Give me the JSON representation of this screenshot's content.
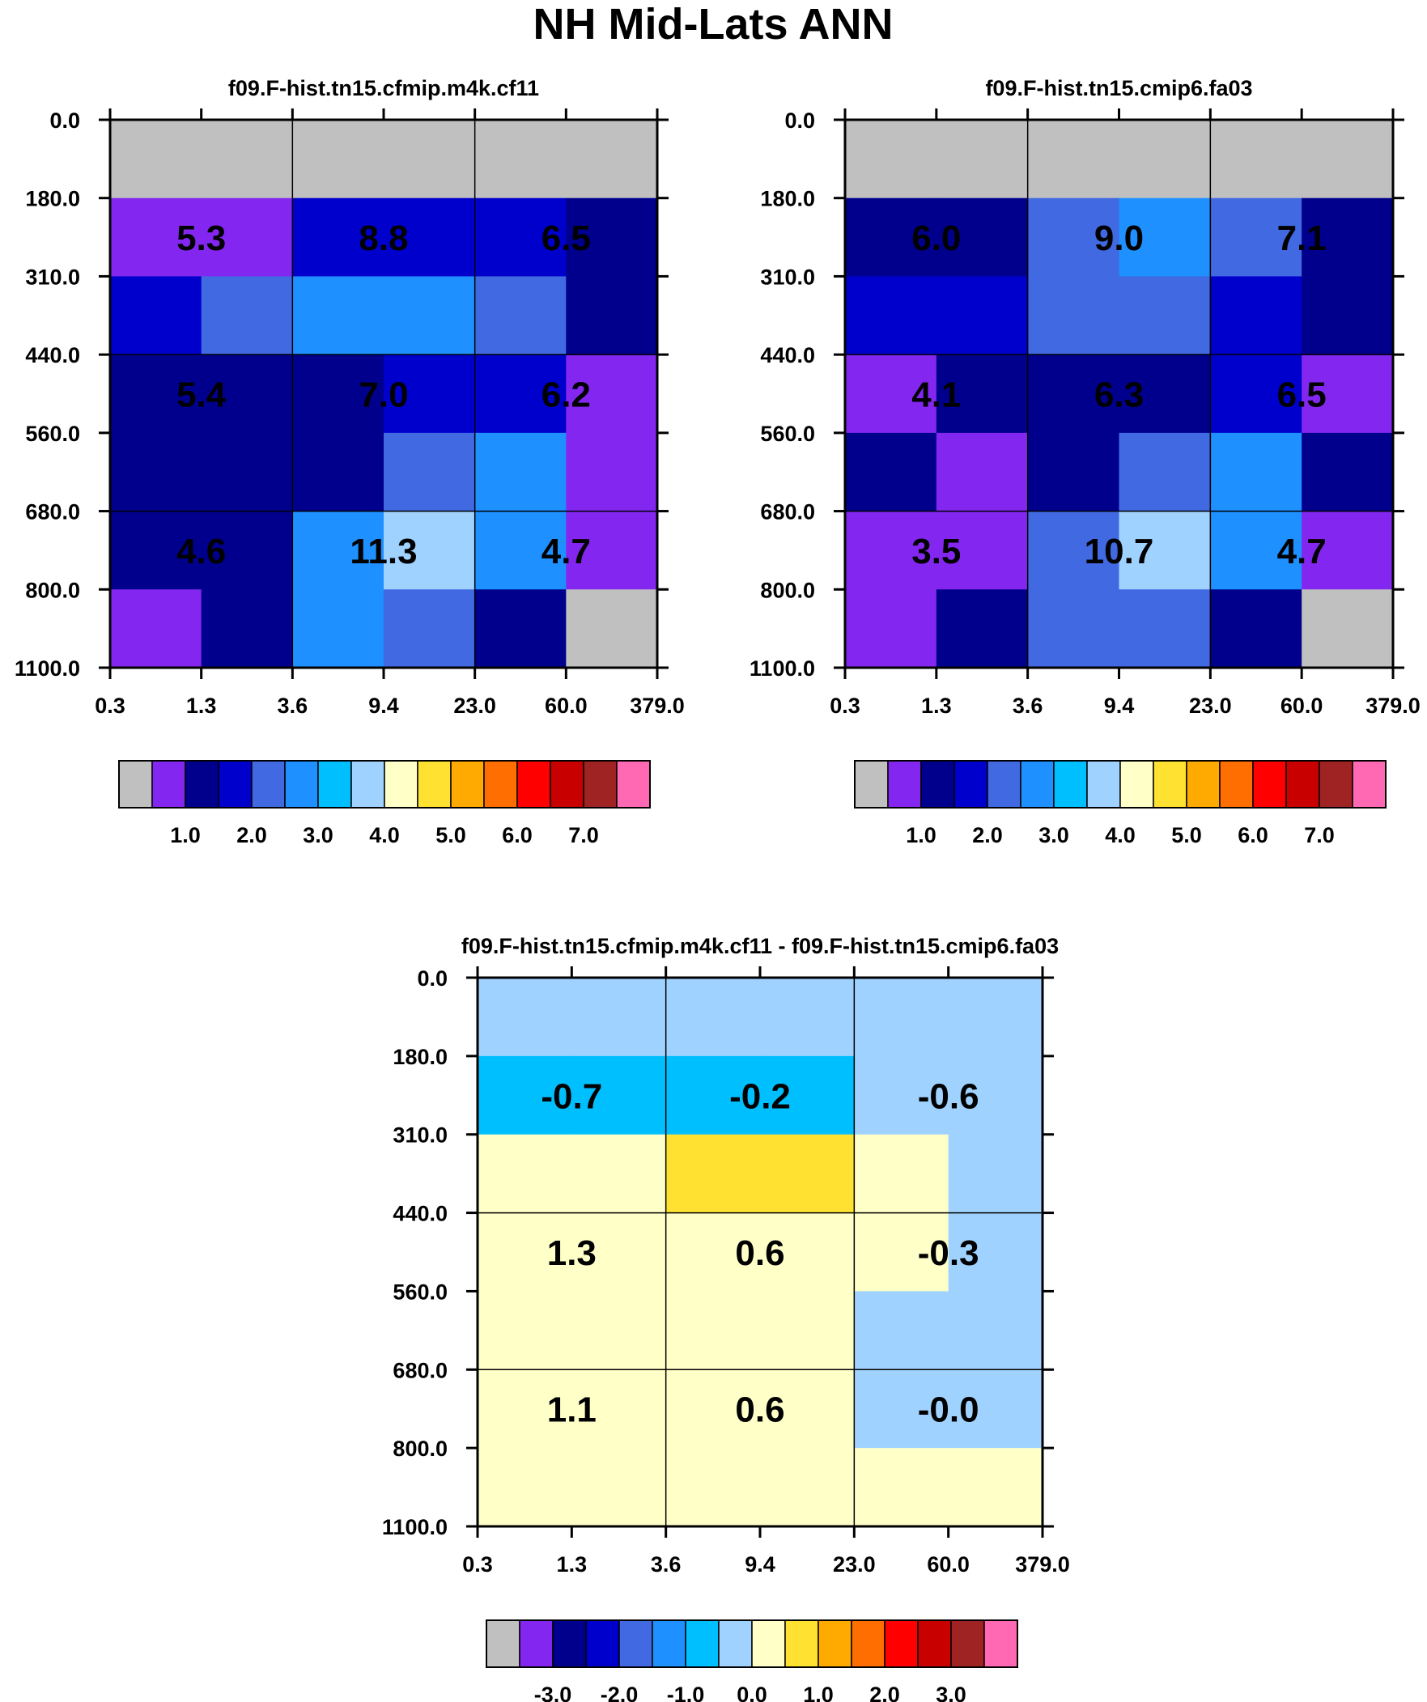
{
  "title": "NH Mid-Lats ANN",
  "x_ticks": [
    "0.3",
    "1.3",
    "3.6",
    "9.4",
    "23.0",
    "60.0",
    "379.0"
  ],
  "y_ticks": [
    "0.0",
    "180.0",
    "310.0",
    "440.0",
    "560.0",
    "680.0",
    "800.0",
    "1100.0"
  ],
  "palette": [
    "#c0c0c0",
    "#8327f0",
    "#00008c",
    "#0000cd",
    "#4169e1",
    "#1e90ff",
    "#00bfff",
    "#a0d2ff",
    "#ffffc8",
    "#ffe132",
    "#ffaa00",
    "#ff6e00",
    "#ff0000",
    "#c80000",
    "#a02323",
    "#ff69b4"
  ],
  "chart_data": [
    {
      "type": "heatmap",
      "title": "f09.F-hist.tn15.cfmip.m4k.cf11",
      "xlabel": "",
      "ylabel": "",
      "x_ticks": [
        "0.3",
        "1.3",
        "3.6",
        "9.4",
        "23.0",
        "60.0",
        "379.0"
      ],
      "y_ticks": [
        "0.0",
        "180.0",
        "310.0",
        "440.0",
        "560.0",
        "680.0",
        "800.0",
        "1100.0"
      ],
      "colorbar_labels": [
        "1.0",
        "2.0",
        "3.0",
        "4.0",
        "5.0",
        "6.0",
        "7.0"
      ],
      "cell_color_index": [
        [
          0,
          0,
          0,
          0,
          0,
          0
        ],
        [
          1,
          1,
          3,
          3,
          3,
          2
        ],
        [
          3,
          4,
          5,
          5,
          4,
          2
        ],
        [
          2,
          2,
          2,
          3,
          3,
          1
        ],
        [
          2,
          2,
          2,
          4,
          5,
          1
        ],
        [
          2,
          2,
          5,
          7,
          5,
          1
        ],
        [
          1,
          2,
          5,
          4,
          2,
          0
        ]
      ],
      "annotations": [
        {
          "x_bin": 0,
          "y_bin": 0,
          "label": "5.3"
        },
        {
          "x_bin": 1,
          "y_bin": 0,
          "label": "8.8"
        },
        {
          "x_bin": 2,
          "y_bin": 0,
          "label": "6.5"
        },
        {
          "x_bin": 0,
          "y_bin": 1,
          "label": "5.4"
        },
        {
          "x_bin": 1,
          "y_bin": 1,
          "label": "7.0"
        },
        {
          "x_bin": 2,
          "y_bin": 1,
          "label": "6.2"
        },
        {
          "x_bin": 0,
          "y_bin": 2,
          "label": "4.6"
        },
        {
          "x_bin": 1,
          "y_bin": 2,
          "label": "11.3"
        },
        {
          "x_bin": 2,
          "y_bin": 2,
          "label": "4.7"
        }
      ]
    },
    {
      "type": "heatmap",
      "title": "f09.F-hist.tn15.cmip6.fa03",
      "xlabel": "",
      "ylabel": "",
      "x_ticks": [
        "0.3",
        "1.3",
        "3.6",
        "9.4",
        "23.0",
        "60.0",
        "379.0"
      ],
      "y_ticks": [
        "0.0",
        "180.0",
        "310.0",
        "440.0",
        "560.0",
        "680.0",
        "800.0",
        "1100.0"
      ],
      "colorbar_labels": [
        "1.0",
        "2.0",
        "3.0",
        "4.0",
        "5.0",
        "6.0",
        "7.0"
      ],
      "cell_color_index": [
        [
          0,
          0,
          0,
          0,
          0,
          0
        ],
        [
          2,
          2,
          4,
          5,
          4,
          2
        ],
        [
          3,
          3,
          4,
          4,
          3,
          2
        ],
        [
          1,
          2,
          2,
          2,
          3,
          1
        ],
        [
          2,
          1,
          2,
          4,
          5,
          2
        ],
        [
          1,
          1,
          4,
          7,
          5,
          1
        ],
        [
          1,
          2,
          4,
          4,
          2,
          0
        ]
      ],
      "annotations": [
        {
          "x_bin": 0,
          "y_bin": 0,
          "label": "6.0"
        },
        {
          "x_bin": 1,
          "y_bin": 0,
          "label": "9.0"
        },
        {
          "x_bin": 2,
          "y_bin": 0,
          "label": "7.1"
        },
        {
          "x_bin": 0,
          "y_bin": 1,
          "label": "4.1"
        },
        {
          "x_bin": 1,
          "y_bin": 1,
          "label": "6.3"
        },
        {
          "x_bin": 2,
          "y_bin": 1,
          "label": "6.5"
        },
        {
          "x_bin": 0,
          "y_bin": 2,
          "label": "3.5"
        },
        {
          "x_bin": 1,
          "y_bin": 2,
          "label": "10.7"
        },
        {
          "x_bin": 2,
          "y_bin": 2,
          "label": "4.7"
        }
      ]
    },
    {
      "type": "heatmap",
      "title": "f09.F-hist.tn15.cfmip.m4k.cf11 - f09.F-hist.tn15.cmip6.fa03",
      "xlabel": "",
      "ylabel": "",
      "x_ticks": [
        "0.3",
        "1.3",
        "3.6",
        "9.4",
        "23.0",
        "60.0",
        "379.0"
      ],
      "y_ticks": [
        "0.0",
        "180.0",
        "310.0",
        "440.0",
        "560.0",
        "680.0",
        "800.0",
        "1100.0"
      ],
      "colorbar_labels": [
        "-3.0",
        "-2.0",
        "-1.0",
        "0.0",
        "1.0",
        "2.0",
        "3.0"
      ],
      "cell_color_index": [
        [
          7,
          7,
          7,
          7,
          7,
          7
        ],
        [
          6,
          6,
          6,
          6,
          7,
          7
        ],
        [
          8,
          8,
          9,
          9,
          8,
          7
        ],
        [
          8,
          8,
          8,
          8,
          8,
          7
        ],
        [
          8,
          8,
          8,
          8,
          7,
          7
        ],
        [
          8,
          8,
          8,
          8,
          7,
          7
        ],
        [
          8,
          8,
          8,
          8,
          8,
          8
        ]
      ],
      "annotations": [
        {
          "x_bin": 0,
          "y_bin": 0,
          "label": "-0.7"
        },
        {
          "x_bin": 1,
          "y_bin": 0,
          "label": "-0.2"
        },
        {
          "x_bin": 2,
          "y_bin": 0,
          "label": "-0.6"
        },
        {
          "x_bin": 0,
          "y_bin": 1,
          "label": "1.3"
        },
        {
          "x_bin": 1,
          "y_bin": 1,
          "label": "0.6"
        },
        {
          "x_bin": 2,
          "y_bin": 1,
          "label": "-0.3"
        },
        {
          "x_bin": 0,
          "y_bin": 2,
          "label": "1.1"
        },
        {
          "x_bin": 1,
          "y_bin": 2,
          "label": "0.6"
        },
        {
          "x_bin": 2,
          "y_bin": 2,
          "label": "-0.0"
        }
      ]
    }
  ]
}
